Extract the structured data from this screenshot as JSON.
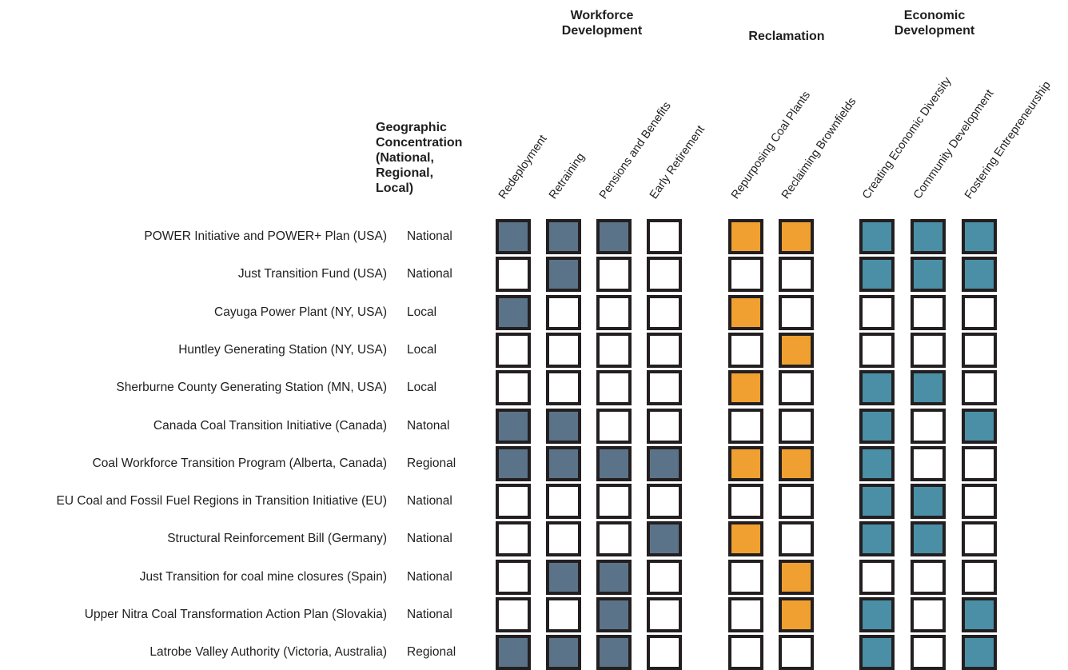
{
  "groups": [
    {
      "name": "Workforce\nDevelopment",
      "columns": [
        "Redeployment",
        "Retraining",
        "Pensions and Benefits",
        "Early Retirement"
      ],
      "fill_color": "#5b7388"
    },
    {
      "name": "Reclamation",
      "columns": [
        "Repurposing Coal Plants",
        "Reclaiming Brownfields"
      ],
      "fill_color": "#f0a030"
    },
    {
      "name": "Economic\nDevelopment",
      "columns": [
        "Creating Economic Diversity",
        "Community Development",
        "Fostering Entrepreneurship"
      ],
      "fill_color": "#4a8fa6"
    }
  ],
  "geo_heading": "Geographic\nConcentration\n(National,\nRegional,\nLocal)",
  "empty_cell_color": "#ffffff",
  "border_color": "#231f20",
  "rows": [
    {
      "name": "POWER Initiative and POWER+ Plan (USA)",
      "geo": "National",
      "cells": [
        1,
        1,
        1,
        0,
        1,
        1,
        1,
        1,
        1
      ]
    },
    {
      "name": "Just Transition Fund (USA)",
      "geo": "National",
      "cells": [
        0,
        1,
        0,
        0,
        0,
        0,
        1,
        1,
        1
      ]
    },
    {
      "name": "Cayuga Power Plant (NY, USA)",
      "geo": "Local",
      "cells": [
        1,
        0,
        0,
        0,
        1,
        0,
        0,
        0,
        0
      ]
    },
    {
      "name": "Huntley Generating Station (NY, USA)",
      "geo": "Local",
      "cells": [
        0,
        0,
        0,
        0,
        0,
        1,
        0,
        0,
        0
      ]
    },
    {
      "name": "Sherburne County Generating Station (MN, USA)",
      "geo": "Local",
      "cells": [
        0,
        0,
        0,
        0,
        1,
        0,
        1,
        1,
        0
      ]
    },
    {
      "name": "Canada Coal Transition Initiative (Canada)",
      "geo": "Natonal",
      "cells": [
        1,
        1,
        0,
        0,
        0,
        0,
        1,
        0,
        1
      ]
    },
    {
      "name": "Coal Workforce Transition Program (Alberta, Canada)",
      "geo": "Regional",
      "cells": [
        1,
        1,
        1,
        1,
        1,
        1,
        1,
        0,
        0
      ]
    },
    {
      "name": "EU Coal and Fossil Fuel Regions in Transition Initiative (EU)",
      "geo": "National",
      "cells": [
        0,
        0,
        0,
        0,
        0,
        0,
        1,
        1,
        0
      ]
    },
    {
      "name": "Structural Reinforcement Bill (Germany)",
      "geo": "National",
      "cells": [
        0,
        0,
        0,
        1,
        1,
        0,
        1,
        1,
        0
      ]
    },
    {
      "name": "Just Transition for coal mine closures (Spain)",
      "geo": "National",
      "cells": [
        0,
        1,
        1,
        0,
        0,
        1,
        0,
        0,
        0
      ]
    },
    {
      "name": "Upper Nitra Coal Transformation Action Plan (Slovakia)",
      "geo": "National",
      "cells": [
        0,
        0,
        1,
        0,
        0,
        1,
        1,
        0,
        1
      ]
    },
    {
      "name": "Latrobe Valley Authority (Victoria, Australia)",
      "geo": "Regional",
      "cells": [
        1,
        1,
        1,
        0,
        0,
        0,
        1,
        0,
        1
      ]
    }
  ]
}
